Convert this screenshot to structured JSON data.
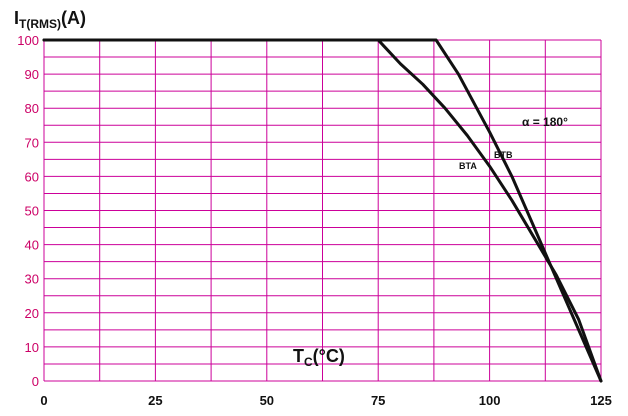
{
  "chart_data": {
    "type": "line",
    "ylabel_main": "I",
    "ylabel_sub": "T(RMS)",
    "ylabel_unit": "(A)",
    "xlabel_main": "T",
    "xlabel_sub": "C",
    "xlabel_unit": "(°C)",
    "xlim": [
      0,
      125
    ],
    "ylim": [
      0,
      100
    ],
    "x_ticks": [
      "0",
      "25",
      "50",
      "75",
      "100",
      "125"
    ],
    "y_ticks": [
      "0",
      "10",
      "20",
      "30",
      "40",
      "50",
      "60",
      "70",
      "80",
      "90",
      "100"
    ],
    "grid": true,
    "annotation": "α = 180°",
    "series": [
      {
        "name": "BTB",
        "x": [
          0,
          88,
          93,
          100,
          105,
          110,
          115,
          120,
          125
        ],
        "y": [
          100,
          100,
          90,
          73,
          60,
          45,
          30,
          15,
          0
        ]
      },
      {
        "name": "BTA",
        "x": [
          0,
          75,
          80,
          85,
          90,
          95,
          100,
          105,
          110,
          115,
          120,
          125
        ],
        "y": [
          100,
          100,
          93,
          87,
          80,
          72,
          63,
          53,
          42,
          31,
          18,
          0
        ]
      }
    ]
  },
  "colors": {
    "grid": "#cc0099",
    "ticks": "#cc0066",
    "series": "#111111"
  }
}
